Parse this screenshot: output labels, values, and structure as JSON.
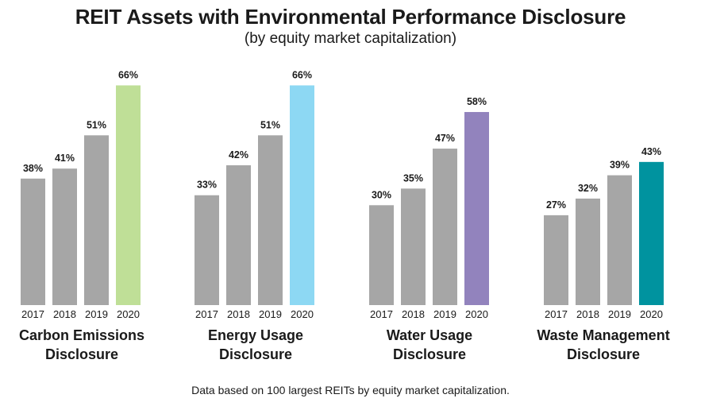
{
  "title": "REIT Assets with Environmental Performance Disclosure",
  "subtitle": "(by equity market capitalization)",
  "footnote": "Data based on 100 largest REITs by equity market capitalization.",
  "chart_data": [
    {
      "type": "bar",
      "title": "Carbon Emissions Disclosure",
      "title_lines": [
        "Carbon Emissions",
        "Disclosure"
      ],
      "categories": [
        "2017",
        "2018",
        "2019",
        "2020"
      ],
      "values": [
        38,
        41,
        51,
        66
      ],
      "value_labels": [
        "38%",
        "41%",
        "51%",
        "66%"
      ],
      "colors": [
        "#a6a6a6",
        "#a6a6a6",
        "#a6a6a6",
        "#bfdf97"
      ]
    },
    {
      "type": "bar",
      "title": "Energy Usage Disclosure",
      "title_lines": [
        "Energy Usage",
        "Disclosure"
      ],
      "categories": [
        "2017",
        "2018",
        "2019",
        "2020"
      ],
      "values": [
        33,
        42,
        51,
        66
      ],
      "value_labels": [
        "33%",
        "42%",
        "51%",
        "66%"
      ],
      "colors": [
        "#a6a6a6",
        "#a6a6a6",
        "#a6a6a6",
        "#8dd8f3"
      ]
    },
    {
      "type": "bar",
      "title": "Water Usage Disclosure",
      "title_lines": [
        "Water Usage",
        "Disclosure"
      ],
      "categories": [
        "2017",
        "2018",
        "2019",
        "2020"
      ],
      "values": [
        30,
        35,
        47,
        58
      ],
      "value_labels": [
        "30%",
        "35%",
        "47%",
        "58%"
      ],
      "colors": [
        "#a6a6a6",
        "#a6a6a6",
        "#a6a6a6",
        "#9283bd"
      ]
    },
    {
      "type": "bar",
      "title": "Waste Management Disclosure",
      "title_lines": [
        "Waste Management",
        "Disclosure"
      ],
      "categories": [
        "2017",
        "2018",
        "2019",
        "2020"
      ],
      "values": [
        27,
        32,
        39,
        43
      ],
      "value_labels": [
        "27%",
        "32%",
        "39%",
        "43%"
      ],
      "colors": [
        "#a6a6a6",
        "#a6a6a6",
        "#a6a6a6",
        "#00939f"
      ]
    }
  ]
}
